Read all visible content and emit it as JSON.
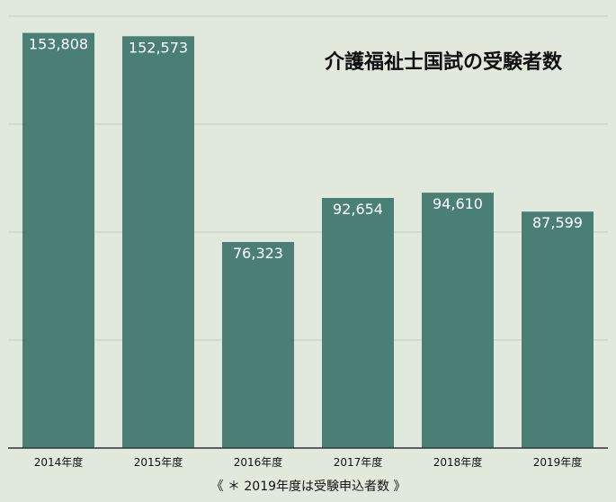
{
  "chart_data": {
    "type": "bar",
    "title": "介護福祉士国試の受験者数",
    "categories": [
      "2014年度",
      "2015年度",
      "2016年度",
      "2017年度",
      "2018年度",
      "2019年度"
    ],
    "values": [
      153808,
      152573,
      76323,
      92654,
      94610,
      87599
    ],
    "value_labels": [
      "153,808",
      "152,573",
      "76,323",
      "92,654",
      "94,610",
      "87,599"
    ],
    "ylim": [
      0,
      160000
    ],
    "grid": true,
    "legend": "none",
    "footnote": "《 ＊ 2019年度は受験申込者数 》",
    "colors": {
      "bar": "#4a7f75",
      "background": "#e1e9dd",
      "grid": "#c4cfbf",
      "axis": "#333333",
      "value_label": "#ffffff",
      "text": "#111111"
    }
  }
}
